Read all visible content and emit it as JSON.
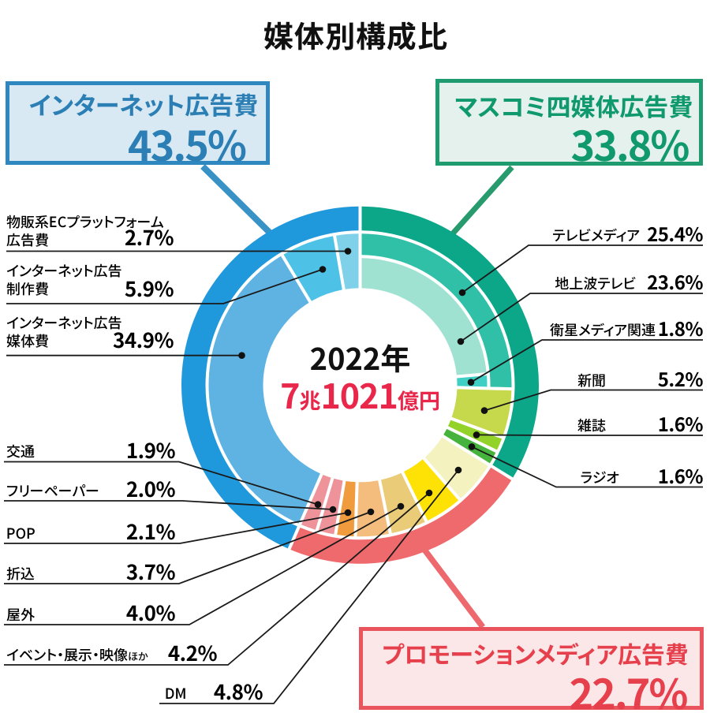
{
  "page": {
    "background": "#ffffff"
  },
  "chart_data": {
    "type": "pie",
    "variant": "double-ring-donut",
    "title": "媒体別構成比",
    "unit": "%",
    "total": 100,
    "center_label": {
      "year": "2022年",
      "total": "7兆1021億円",
      "total_parts": [
        "7",
        "兆",
        "1021",
        "億円"
      ],
      "total_color": "#e8274b",
      "year_color": "#111111"
    },
    "categories": [
      {
        "id": "mass-media",
        "label": "マスコミ四媒体広告費",
        "value": 33.8,
        "pct": "33.8%",
        "color": "#0ba788",
        "box_border": "#1f9c6f",
        "box_fill": "#e4f1ec",
        "text_color": "#11996e"
      },
      {
        "id": "promotion-media",
        "label": "プロモーションメディア広告費",
        "value": 22.7,
        "pct": "22.7%",
        "color": "#ef6a6d",
        "box_border": "#e9545d",
        "box_fill": "#fbe6e8",
        "text_color": "#e6404d"
      },
      {
        "id": "internet",
        "label": "インターネット広告費",
        "value": 43.5,
        "pct": "43.5%",
        "color": "#2098dc",
        "box_border": "#2e87be",
        "box_fill": "#d9e9f3",
        "text_color": "#2b7fb5"
      }
    ],
    "segments": [
      {
        "id": "terrestrial-tv",
        "label": "地上波テレビ",
        "value": 23.6,
        "pct": "23.6%",
        "color": "#a0e2d2",
        "group": "mass-media",
        "ring": "inner-split"
      },
      {
        "id": "satellite-media",
        "label": "衛星メディア関連",
        "value": 1.8,
        "pct": "1.8%",
        "color": "#3fcfc5",
        "group": "mass-media",
        "ring": "inner-split"
      },
      {
        "id": "newspaper",
        "label": "新聞",
        "value": 5.2,
        "pct": "5.2%",
        "color": "#c6d84c",
        "group": "mass-media",
        "ring": "full"
      },
      {
        "id": "magazine",
        "label": "雑誌",
        "value": 1.6,
        "pct": "1.6%",
        "color": "#93d229",
        "group": "mass-media",
        "ring": "full"
      },
      {
        "id": "radio",
        "label": "ラジオ",
        "value": 1.6,
        "pct": "1.6%",
        "color": "#46b43c",
        "group": "mass-media",
        "ring": "full"
      },
      {
        "id": "dm",
        "label": "DM",
        "value": 4.8,
        "pct": "4.8%",
        "color": "#f4f2be",
        "group": "promotion-media",
        "ring": "full"
      },
      {
        "id": "event-exhibition-video",
        "label": "イベント・展示・映像",
        "label_suffix": "ほか",
        "value": 4.2,
        "pct": "4.2%",
        "color": "#ffe205",
        "group": "promotion-media",
        "ring": "full"
      },
      {
        "id": "outdoor",
        "label": "屋外",
        "value": 4.0,
        "pct": "4.0%",
        "color": "#eacb77",
        "group": "promotion-media",
        "ring": "full"
      },
      {
        "id": "insert",
        "label": "折込",
        "value": 3.7,
        "pct": "3.7%",
        "color": "#f4bd7d",
        "group": "promotion-media",
        "ring": "full"
      },
      {
        "id": "pop",
        "label": "POP",
        "value": 2.1,
        "pct": "2.1%",
        "color": "#f09c3e",
        "group": "promotion-media",
        "ring": "full"
      },
      {
        "id": "free-paper",
        "label": "フリーペーパー",
        "value": 2.0,
        "pct": "2.0%",
        "color": "#ef939b",
        "group": "promotion-media",
        "ring": "full"
      },
      {
        "id": "transit",
        "label": "交通",
        "value": 1.9,
        "pct": "1.9%",
        "color": "#ef939b",
        "group": "promotion-media",
        "ring": "full"
      },
      {
        "id": "internet-media",
        "label": "インターネット広告",
        "label_line2": "媒体費",
        "value": 34.9,
        "pct": "34.9%",
        "color": "#5fb3e3",
        "group": "internet",
        "ring": "full"
      },
      {
        "id": "internet-production",
        "label": "インターネット広告",
        "label_line2": "制作費",
        "value": 5.9,
        "pct": "5.9%",
        "color": "#4ec2e6",
        "group": "internet",
        "ring": "full"
      },
      {
        "id": "ec-platform",
        "label": "物販系ECプラットフォーム",
        "label_line2": "広告費",
        "value": 2.7,
        "pct": "2.7%",
        "color": "#7fd1e9",
        "group": "internet",
        "ring": "full"
      },
      {
        "id": "tv-media",
        "label": "テレビメディア",
        "value": 25.4,
        "pct": "25.4%",
        "color": "#30c0a8",
        "group": "mass-media",
        "ring": "outer-split"
      }
    ]
  }
}
